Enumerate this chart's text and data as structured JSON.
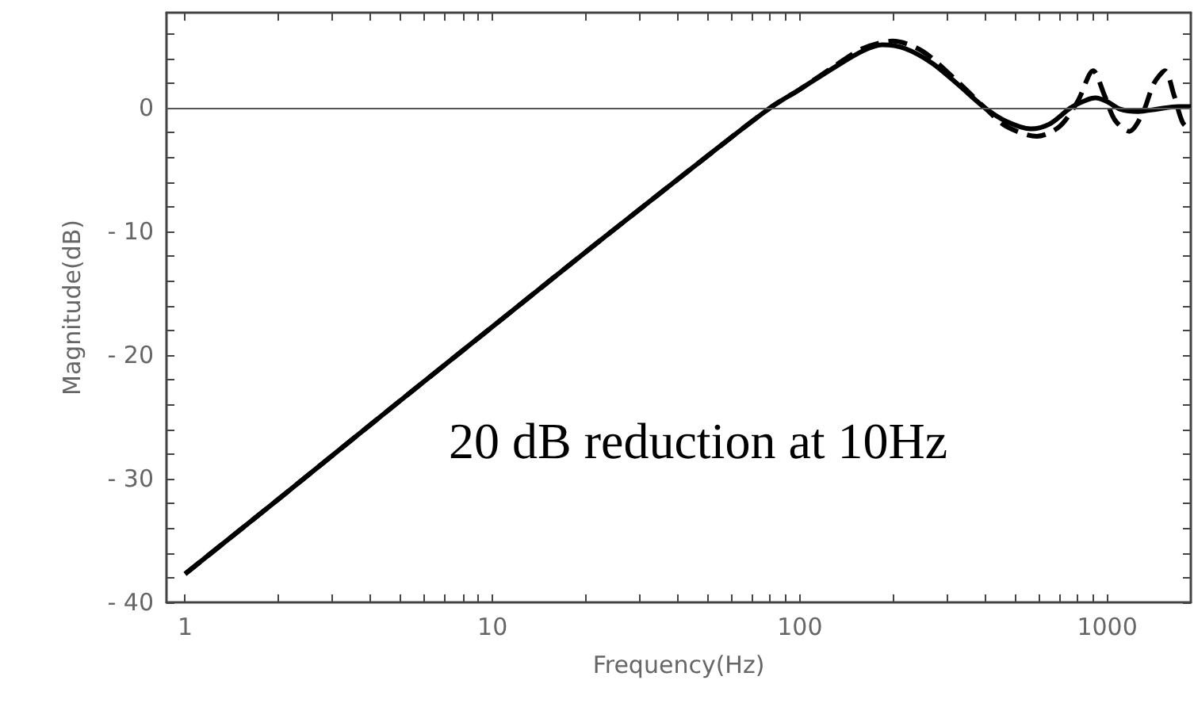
{
  "chart_data": {
    "type": "line",
    "xlabel": "Frequency(Hz)",
    "ylabel": "Magnitude(dB)",
    "log": "x",
    "grid": false,
    "marker": "none",
    "annotations": [
      "20 dB reduction at 10Hz"
    ],
    "xlim": [
      0.87,
      1870
    ],
    "ylim": [
      -40,
      7.7
    ],
    "xticks": [
      1,
      {
        "value": 2,
        "label": null
      },
      {
        "value": 3,
        "label": null
      },
      {
        "value": 4,
        "label": null
      },
      {
        "value": 5,
        "label": null
      },
      {
        "value": 6,
        "label": null
      },
      {
        "value": 7,
        "label": null
      },
      {
        "value": 8,
        "label": null
      },
      {
        "value": 9,
        "label": null
      },
      10,
      {
        "value": 20,
        "label": null
      },
      {
        "value": 30,
        "label": null
      },
      {
        "value": 40,
        "label": null
      },
      {
        "value": 50,
        "label": null
      },
      {
        "value": 60,
        "label": null
      },
      {
        "value": 70,
        "label": null
      },
      {
        "value": 80,
        "label": null
      },
      {
        "value": 90,
        "label": null
      },
      100,
      {
        "value": 200,
        "label": null
      },
      {
        "value": 300,
        "label": null
      },
      {
        "value": 400,
        "label": null
      },
      {
        "value": 500,
        "label": null
      },
      {
        "value": 600,
        "label": null
      },
      {
        "value": 700,
        "label": null
      },
      {
        "value": 800,
        "label": null
      },
      {
        "value": 900,
        "label": null
      },
      1000
    ],
    "yticks": [
      {
        "value": -40,
        "label": "- 40"
      },
      {
        "value": -38,
        "label": null
      },
      {
        "value": -36,
        "label": null
      },
      {
        "value": -34,
        "label": null
      },
      {
        "value": -32,
        "label": null
      },
      {
        "value": -30,
        "label": "- 30"
      },
      {
        "value": -28,
        "label": null
      },
      {
        "value": -26,
        "label": null
      },
      {
        "value": -24,
        "label": null
      },
      {
        "value": -22,
        "label": null
      },
      {
        "value": -20,
        "label": "- 20"
      },
      {
        "value": -18,
        "label": null
      },
      {
        "value": -16,
        "label": null
      },
      {
        "value": -14,
        "label": null
      },
      {
        "value": -12,
        "label": null
      },
      {
        "value": -10,
        "label": "- 10"
      },
      {
        "value": -8,
        "label": null
      },
      {
        "value": -6,
        "label": null
      },
      {
        "value": -4,
        "label": null
      },
      {
        "value": -2,
        "label": null
      },
      0,
      {
        "value": 2,
        "label": null
      },
      {
        "value": 4,
        "label": null
      },
      {
        "value": 6,
        "label": null
      }
    ],
    "ref_lines": [
      {
        "axis": "y",
        "value": 0,
        "label": null,
        "color": "#555555"
      }
    ],
    "series": [
      {
        "color": "#000000",
        "line_style": "solid",
        "x": [
          1,
          2,
          5,
          10,
          20,
          50,
          80,
          100,
          130,
          160,
          185,
          220,
          270,
          330,
          400,
          470,
          563,
          650,
          760,
          850,
          915,
          1000,
          1100,
          1260,
          1450,
          1700,
          1870
        ],
        "values": [
          -37.7,
          -31.7,
          -23.7,
          -17.7,
          -11.7,
          -3.9,
          0,
          1.5,
          3.3,
          4.6,
          5.1,
          4.8,
          3.6,
          1.8,
          0,
          -1.1,
          -1.7,
          -1.3,
          0,
          0.6,
          0.8,
          0.5,
          -0.1,
          -0.3,
          -0.1,
          0.1,
          0.1
        ]
      },
      {
        "color": "#000000",
        "line_style": "dashed",
        "x": [
          1,
          2,
          5,
          10,
          20,
          50,
          80,
          100,
          130,
          160,
          200,
          250,
          330,
          400,
          470,
          590,
          700,
          800,
          900,
          980,
          1060,
          1180,
          1300,
          1420,
          1540,
          1650,
          1760,
          1870
        ],
        "values": [
          -37.7,
          -31.7,
          -23.7,
          -17.7,
          -11.7,
          -3.9,
          0,
          1.5,
          3.4,
          4.8,
          5.4,
          4.6,
          2.0,
          0,
          -1.5,
          -2.3,
          -1.5,
          0.5,
          3.0,
          1.0,
          -1.0,
          -1.9,
          -0.5,
          2.0,
          3.0,
          1.0,
          -1.2,
          -1.8
        ]
      }
    ]
  }
}
